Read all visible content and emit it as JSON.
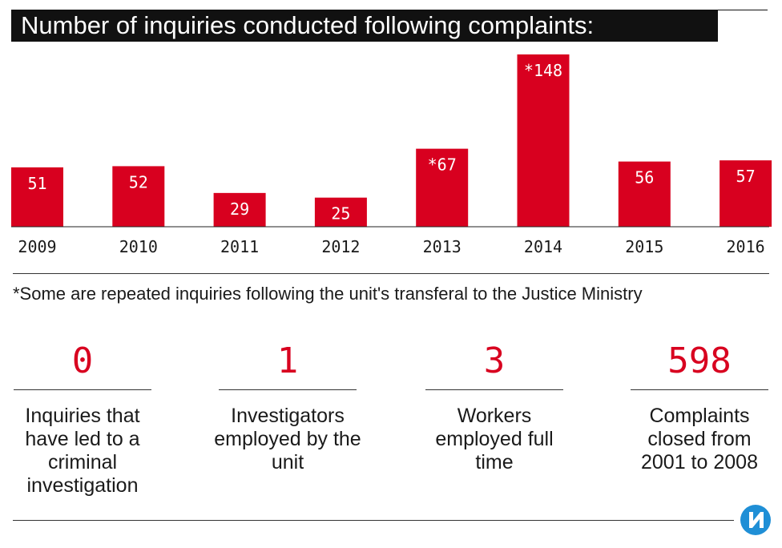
{
  "title": "Number of inquiries conducted following complaints:",
  "chart_data": {
    "type": "bar",
    "categories": [
      "2009",
      "2010",
      "2011",
      "2012",
      "2013",
      "2014",
      "2015",
      "2016"
    ],
    "values": [
      51,
      52,
      29,
      25,
      67,
      148,
      56,
      57
    ],
    "data_labels": [
      "51",
      "52",
      "29",
      "25",
      "*67",
      "*148",
      "56",
      "57"
    ],
    "title": "Number of inquiries conducted following complaints:",
    "xlabel": "",
    "ylabel": "",
    "ylim": [
      0,
      150
    ],
    "grid": false,
    "bar_color": "#d8001f",
    "footnote": "*Some are repeated inquiries following the unit's transferal to the Justice Ministry"
  },
  "stats": [
    {
      "value": "0",
      "label": "Inquiries that have led to a criminal investigation"
    },
    {
      "value": "1",
      "label": "Investigators employed by the unit"
    },
    {
      "value": "3",
      "label": "Workers employed full time"
    },
    {
      "value": "598",
      "label": "Complaints closed from 2001 to 2008"
    }
  ],
  "logo_icon": "haaretz-logo-icon",
  "colors": {
    "accent": "#d8001f",
    "title_bg": "#111111",
    "logo": "#1f8fd6"
  }
}
